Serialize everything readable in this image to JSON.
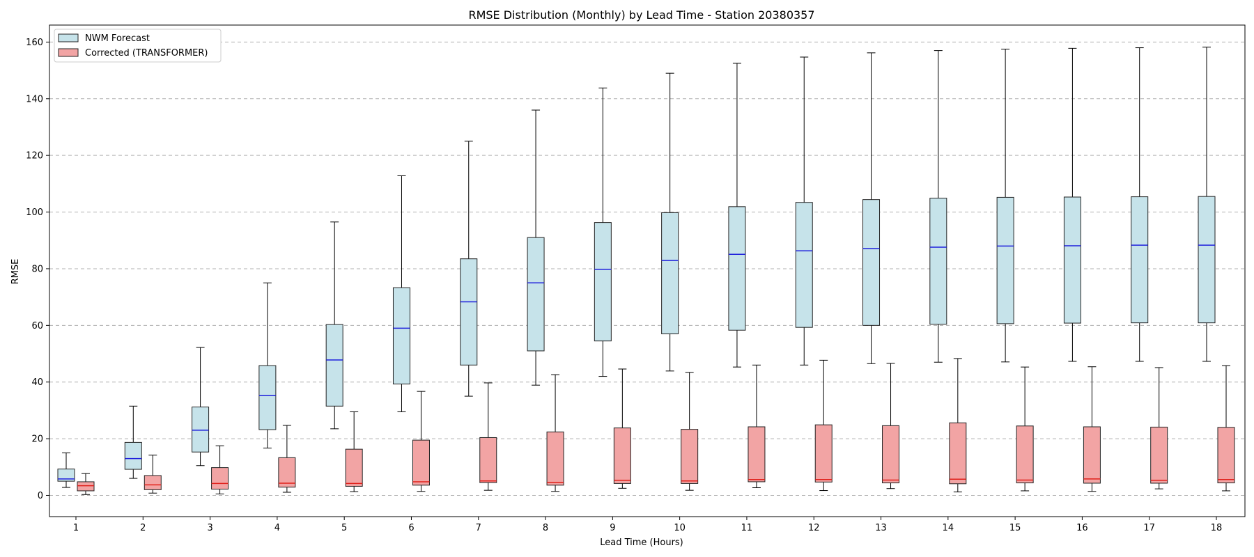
{
  "chart_data": {
    "type": "boxplot",
    "title": "RMSE Distribution (Monthly) by Lead Time - Station 20380357",
    "xlabel": "Lead Time (Hours)",
    "ylabel": "RMSE",
    "ylim": [
      -7.5,
      166
    ],
    "yticks": [
      0,
      20,
      40,
      60,
      80,
      100,
      120,
      140,
      160
    ],
    "grid": "y-dashed",
    "legend_position": "top-left",
    "categories": [
      "1",
      "2",
      "3",
      "4",
      "5",
      "6",
      "7",
      "8",
      "9",
      "10",
      "11",
      "12",
      "13",
      "14",
      "15",
      "16",
      "17",
      "18"
    ],
    "series": [
      {
        "name": "NWM Forecast",
        "fill": "#c6e3ea",
        "median_color": "#1f1fdc",
        "boxes": [
          {
            "whisker_low": 2.8,
            "q1": 5.0,
            "median": 5.8,
            "q3": 9.3,
            "whisker_high": 15.0
          },
          {
            "whisker_low": 6.0,
            "q1": 9.2,
            "median": 13.0,
            "q3": 18.7,
            "whisker_high": 31.5
          },
          {
            "whisker_low": 10.5,
            "q1": 15.3,
            "median": 23.0,
            "q3": 31.2,
            "whisker_high": 52.2
          },
          {
            "whisker_low": 16.7,
            "q1": 23.2,
            "median": 35.2,
            "q3": 45.8,
            "whisker_high": 75.0
          },
          {
            "whisker_low": 23.5,
            "q1": 31.5,
            "median": 47.8,
            "q3": 60.3,
            "whisker_high": 96.5
          },
          {
            "whisker_low": 29.5,
            "q1": 39.3,
            "median": 59.0,
            "q3": 73.3,
            "whisker_high": 112.8
          },
          {
            "whisker_low": 35.0,
            "q1": 46.0,
            "median": 68.3,
            "q3": 83.5,
            "whisker_high": 125.0
          },
          {
            "whisker_low": 38.9,
            "q1": 51.0,
            "median": 75.0,
            "q3": 91.0,
            "whisker_high": 136.0
          },
          {
            "whisker_low": 42.0,
            "q1": 54.5,
            "median": 79.8,
            "q3": 96.3,
            "whisker_high": 143.8
          },
          {
            "whisker_low": 43.9,
            "q1": 57.0,
            "median": 82.9,
            "q3": 99.8,
            "whisker_high": 149.0
          },
          {
            "whisker_low": 45.3,
            "q1": 58.3,
            "median": 85.1,
            "q3": 101.9,
            "whisker_high": 152.5
          },
          {
            "whisker_low": 46.0,
            "q1": 59.3,
            "median": 86.3,
            "q3": 103.4,
            "whisker_high": 154.7
          },
          {
            "whisker_low": 46.5,
            "q1": 60.0,
            "median": 87.1,
            "q3": 104.4,
            "whisker_high": 156.2
          },
          {
            "whisker_low": 47.0,
            "q1": 60.4,
            "median": 87.6,
            "q3": 104.9,
            "whisker_high": 157.0
          },
          {
            "whisker_low": 47.1,
            "q1": 60.6,
            "median": 88.0,
            "q3": 105.2,
            "whisker_high": 157.5
          },
          {
            "whisker_low": 47.3,
            "q1": 60.8,
            "median": 88.1,
            "q3": 105.3,
            "whisker_high": 157.8
          },
          {
            "whisker_low": 47.3,
            "q1": 60.9,
            "median": 88.3,
            "q3": 105.4,
            "whisker_high": 158.0
          },
          {
            "whisker_low": 47.3,
            "q1": 60.9,
            "median": 88.3,
            "q3": 105.5,
            "whisker_high": 158.2
          }
        ]
      },
      {
        "name": "Corrected (TRANSFORMER)",
        "fill": "#f2a4a4",
        "median_color": "#e0201a",
        "boxes": [
          {
            "whisker_low": 0.3,
            "q1": 1.6,
            "median": 3.4,
            "q3": 4.8,
            "whisker_high": 7.7
          },
          {
            "whisker_low": 0.8,
            "q1": 2.0,
            "median": 3.7,
            "q3": 7.0,
            "whisker_high": 14.2
          },
          {
            "whisker_low": 0.5,
            "q1": 2.2,
            "median": 4.2,
            "q3": 9.8,
            "whisker_high": 17.5
          },
          {
            "whisker_low": 1.1,
            "q1": 2.9,
            "median": 4.3,
            "q3": 13.3,
            "whisker_high": 24.7
          },
          {
            "whisker_low": 1.3,
            "q1": 3.2,
            "median": 4.2,
            "q3": 16.3,
            "whisker_high": 29.5
          },
          {
            "whisker_low": 1.4,
            "q1": 3.6,
            "median": 4.8,
            "q3": 19.5,
            "whisker_high": 36.7
          },
          {
            "whisker_low": 1.8,
            "q1": 4.5,
            "median": 5.1,
            "q3": 20.4,
            "whisker_high": 39.7
          },
          {
            "whisker_low": 1.4,
            "q1": 3.6,
            "median": 4.6,
            "q3": 22.4,
            "whisker_high": 42.6
          },
          {
            "whisker_low": 2.5,
            "q1": 4.2,
            "median": 5.3,
            "q3": 23.8,
            "whisker_high": 44.6
          },
          {
            "whisker_low": 1.8,
            "q1": 4.2,
            "median": 5.1,
            "q3": 23.3,
            "whisker_high": 43.4
          },
          {
            "whisker_low": 2.7,
            "q1": 4.8,
            "median": 5.6,
            "q3": 24.2,
            "whisker_high": 46.0
          },
          {
            "whisker_low": 1.7,
            "q1": 4.7,
            "median": 5.6,
            "q3": 24.9,
            "whisker_high": 47.7
          },
          {
            "whisker_low": 2.4,
            "q1": 4.4,
            "median": 5.4,
            "q3": 24.6,
            "whisker_high": 46.6
          },
          {
            "whisker_low": 1.2,
            "q1": 4.1,
            "median": 5.7,
            "q3": 25.6,
            "whisker_high": 48.3
          },
          {
            "whisker_low": 1.6,
            "q1": 4.4,
            "median": 5.4,
            "q3": 24.5,
            "whisker_high": 45.3
          },
          {
            "whisker_low": 1.4,
            "q1": 4.3,
            "median": 5.8,
            "q3": 24.2,
            "whisker_high": 45.4
          },
          {
            "whisker_low": 2.3,
            "q1": 4.3,
            "median": 5.3,
            "q3": 24.1,
            "whisker_high": 45.1
          },
          {
            "whisker_low": 1.6,
            "q1": 4.4,
            "median": 5.6,
            "q3": 24.0,
            "whisker_high": 45.8
          }
        ]
      }
    ]
  }
}
